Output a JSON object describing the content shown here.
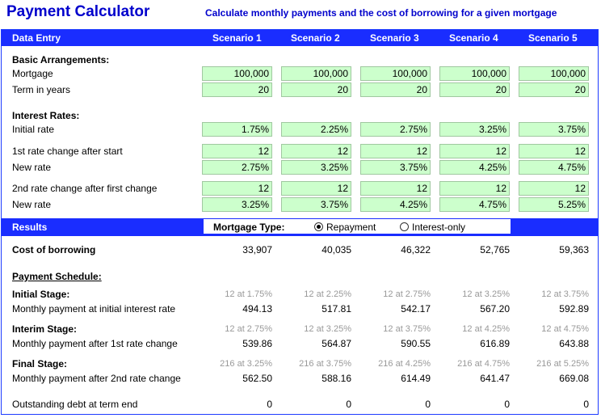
{
  "header": {
    "title": "Payment Calculator",
    "subtitle": "Calculate monthly payments and the cost of borrowing for a given mortgage"
  },
  "data_entry": {
    "heading": "Data Entry",
    "scenarios": [
      "Scenario 1",
      "Scenario 2",
      "Scenario 3",
      "Scenario 4",
      "Scenario 5"
    ],
    "basic_heading": "Basic Arrangements:",
    "mortgage_label": "Mortgage",
    "mortgage": [
      "100,000",
      "100,000",
      "100,000",
      "100,000",
      "100,000"
    ],
    "term_label": "Term in years",
    "term": [
      "20",
      "20",
      "20",
      "20",
      "20"
    ],
    "interest_heading": "Interest Rates:",
    "initial_rate_label": "Initial rate",
    "initial_rate": [
      "1.75%",
      "2.25%",
      "2.75%",
      "3.25%",
      "3.75%"
    ],
    "change1_label": "1st rate change after start",
    "change1": [
      "12",
      "12",
      "12",
      "12",
      "12"
    ],
    "new_rate1_label": "New rate",
    "new_rate1": [
      "2.75%",
      "3.25%",
      "3.75%",
      "4.25%",
      "4.75%"
    ],
    "change2_label": "2nd rate change after first change",
    "change2": [
      "12",
      "12",
      "12",
      "12",
      "12"
    ],
    "new_rate2_label": "New rate",
    "new_rate2": [
      "3.25%",
      "3.75%",
      "4.25%",
      "4.75%",
      "5.25%"
    ]
  },
  "results": {
    "heading": "Results",
    "mortgage_type_label": "Mortgage Type:",
    "options": [
      "Repayment",
      "Interest-only"
    ],
    "selected_option": "Repayment",
    "cost_label": "Cost of borrowing",
    "cost": [
      "33,907",
      "40,035",
      "46,322",
      "52,765",
      "59,363"
    ],
    "schedule_heading": "Payment Schedule:",
    "initial_stage_label": "Initial Stage:",
    "initial_stage": [
      "12 at 1.75%",
      "12 at 2.25%",
      "12 at 2.75%",
      "12 at 3.25%",
      "12 at 3.75%"
    ],
    "initial_payment_label": "Monthly payment at initial interest rate",
    "initial_payment": [
      "494.13",
      "517.81",
      "542.17",
      "567.20",
      "592.89"
    ],
    "interim_stage_label": "Interim Stage:",
    "interim_stage": [
      "12 at 2.75%",
      "12 at 3.25%",
      "12 at 3.75%",
      "12 at 4.25%",
      "12 at 4.75%"
    ],
    "interim_payment_label": "Monthly payment after 1st rate change",
    "interim_payment": [
      "539.86",
      "564.87",
      "590.55",
      "616.89",
      "643.88"
    ],
    "final_stage_label": "Final Stage:",
    "final_stage": [
      "216 at 3.25%",
      "216 at 3.75%",
      "216 at 4.25%",
      "216 at 4.75%",
      "216 at 5.25%"
    ],
    "final_payment_label": "Monthly payment after 2nd rate change",
    "final_payment": [
      "562.50",
      "588.16",
      "614.49",
      "641.47",
      "669.08"
    ],
    "outstanding_label": "Outstanding debt at term end",
    "outstanding": [
      "0",
      "0",
      "0",
      "0",
      "0"
    ]
  }
}
